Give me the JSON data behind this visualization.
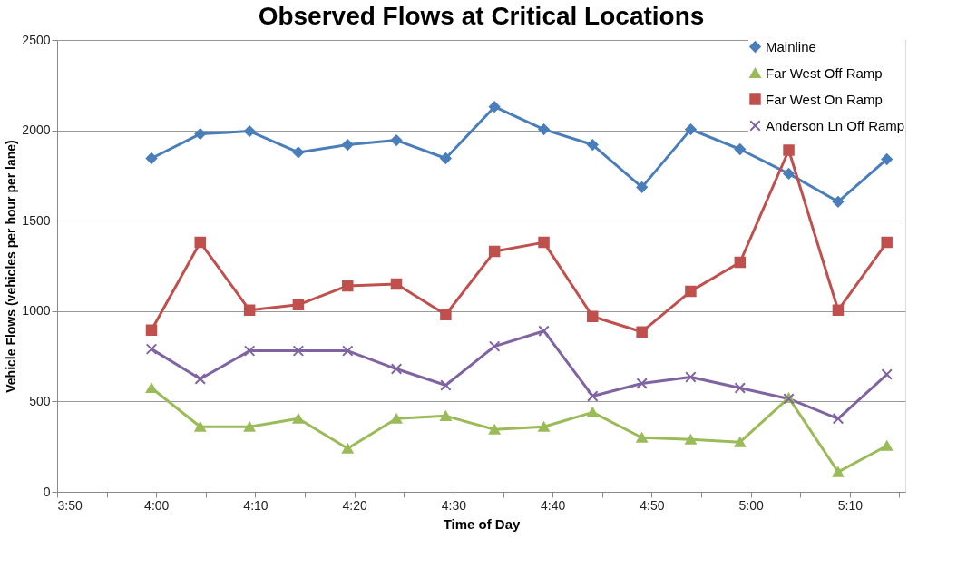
{
  "chart_data": {
    "type": "line",
    "title": "Observed Flows at Critical Locations",
    "xlabel": "Time of Day",
    "ylabel": "Vehicle Flows (vehicles per hour per lane)",
    "x": [
      3.992,
      4.074,
      4.157,
      4.239,
      4.322,
      4.404,
      4.487,
      4.569,
      4.652,
      4.734,
      4.817,
      4.899,
      4.982,
      5.064,
      5.147,
      5.229
    ],
    "series": [
      {
        "name": "Mainline",
        "color": "#4a7ebb",
        "marker": "diamond",
        "values": [
          1845,
          1980,
          1995,
          1878,
          1920,
          1945,
          1845,
          2130,
          2005,
          1920,
          1685,
          2005,
          1895,
          1760,
          1605,
          1840
        ]
      },
      {
        "name": "Far West Off Ramp",
        "color": "#9bbb59",
        "marker": "triangle",
        "values": [
          575,
          360,
          360,
          405,
          240,
          405,
          420,
          345,
          360,
          440,
          300,
          290,
          275,
          520,
          110,
          255
        ]
      },
      {
        "name": "Far West On Ramp",
        "color": "#c0504d",
        "marker": "square",
        "values": [
          895,
          1380,
          1005,
          1035,
          1140,
          1150,
          980,
          1330,
          1380,
          970,
          885,
          1110,
          1270,
          1890,
          1005,
          1380
        ]
      },
      {
        "name": "Anderson Ln Off Ramp",
        "color": "#8064a2",
        "marker": "cross",
        "values": [
          790,
          625,
          780,
          780,
          780,
          680,
          590,
          805,
          890,
          530,
          600,
          635,
          575,
          515,
          405,
          650
        ]
      }
    ],
    "xlim": [
      3.8333,
      5.26
    ],
    "xticks": [
      {
        "value": 3.8333,
        "label": "3:50"
      },
      {
        "value": 3.9167,
        "label": null
      },
      {
        "value": 4.0,
        "label": "4:00"
      },
      {
        "value": 4.0833,
        "label": null
      },
      {
        "value": 4.1667,
        "label": "4:10"
      },
      {
        "value": 4.25,
        "label": null
      },
      {
        "value": 4.3333,
        "label": "4:20"
      },
      {
        "value": 4.4167,
        "label": null
      },
      {
        "value": 4.5,
        "label": "4:30"
      },
      {
        "value": 4.5833,
        "label": null
      },
      {
        "value": 4.6667,
        "label": "4:40"
      },
      {
        "value": 4.75,
        "label": null
      },
      {
        "value": 4.8333,
        "label": "4:50"
      },
      {
        "value": 4.9167,
        "label": null
      },
      {
        "value": 5.0,
        "label": "5:00"
      },
      {
        "value": 5.0833,
        "label": null
      },
      {
        "value": 5.1667,
        "label": "5:10"
      },
      {
        "value": 5.25,
        "label": null
      }
    ],
    "ylim": [
      0,
      2500
    ],
    "yticks": [
      0,
      500,
      1000,
      1500,
      2000,
      2500
    ],
    "grid": "y",
    "legend": "top right",
    "line_style": "solid"
  }
}
